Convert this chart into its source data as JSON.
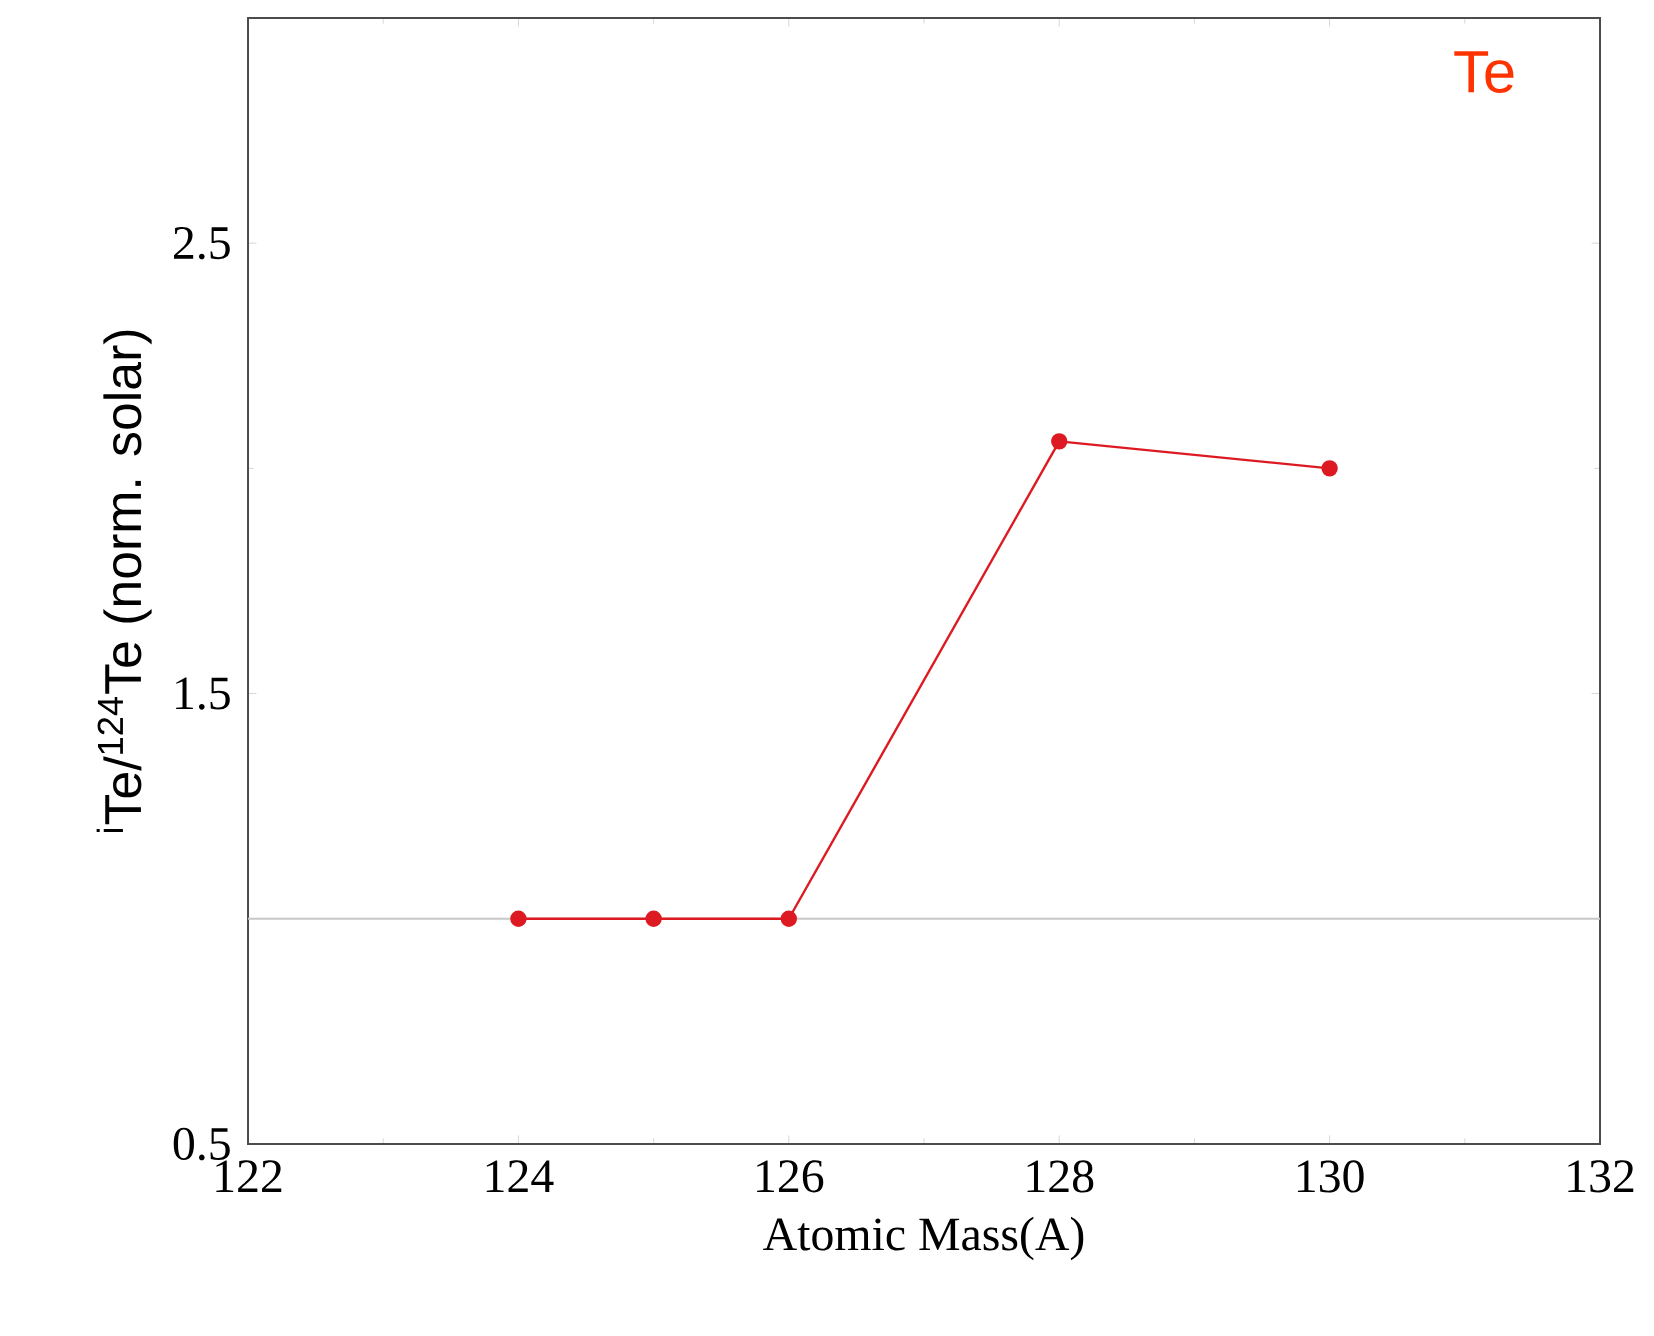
{
  "chart_data": {
    "type": "line",
    "title": "Te",
    "xlabel": "Atomic Mass(A)",
    "ylabel": "$^{i}$Te/$^{124}$Te (norm. solar)",
    "x": [
      124,
      125,
      126,
      128,
      130
    ],
    "series": [
      {
        "color": "#dd1a22",
        "values": [
          1.0,
          1.0,
          1.0,
          2.06,
          2.0
        ]
      }
    ],
    "marker": "circle",
    "xlim": [
      122,
      132
    ],
    "xticks": [
      122,
      124,
      126,
      128,
      130,
      132
    ],
    "ylim": [
      0.5,
      3.0
    ],
    "yticks": [
      0.5,
      1.5,
      2.5
    ],
    "ref_lines": [
      {
        "axis": "y",
        "value": 1.0,
        "color": "#c8c8c8"
      }
    ],
    "grid": false
  }
}
